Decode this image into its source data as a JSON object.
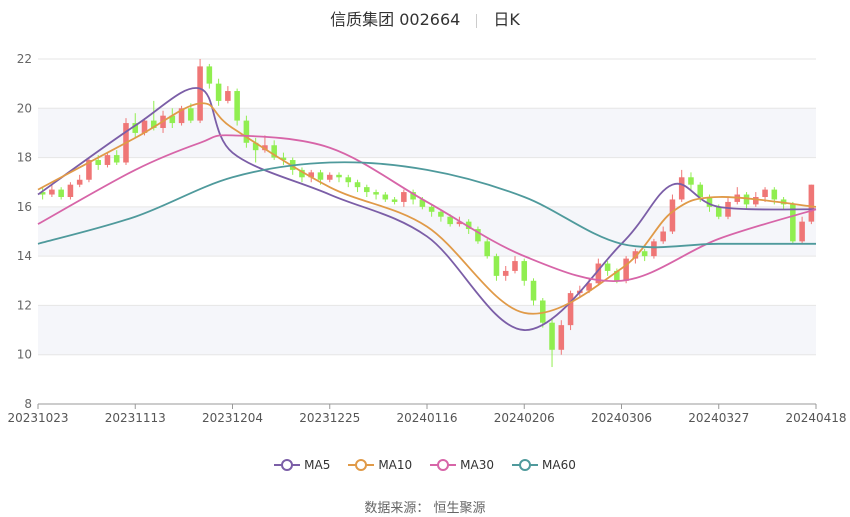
{
  "header": {
    "stock": "信质集团 002664",
    "period": "日K"
  },
  "source": "数据来源： 恒生聚源",
  "colors": {
    "up": "#ef7676",
    "down": "#90ee50",
    "ma5": "#7b5ea7",
    "ma10": "#e09a48",
    "ma30": "#d765a8",
    "ma60": "#4f9a9c",
    "band": "#f5f6fa",
    "grid": "#e6e6e6"
  },
  "chart_data": {
    "type": "candlestick",
    "title": "信质集团 002664",
    "period": "日K",
    "ylim": [
      8,
      22
    ],
    "yticks": [
      8,
      10,
      12,
      14,
      16,
      18,
      20,
      22
    ],
    "xticks": [
      "20231023",
      "20231113",
      "20231204",
      "20231225",
      "20240116",
      "20240206",
      "20240306",
      "20240327",
      "20240418"
    ],
    "legend": [
      "MA5",
      "MA10",
      "MA30",
      "MA60"
    ],
    "series": [
      {
        "name": "MA5",
        "x": [
          "20231023",
          "20231113",
          "20231127",
          "20231204",
          "20231225",
          "20240116",
          "20240206",
          "20240306",
          "20240317",
          "20240327",
          "20240418"
        ],
        "values": [
          16.5,
          19.3,
          20.8,
          18.2,
          16.5,
          14.8,
          11.0,
          14.5,
          16.9,
          16.0,
          15.9
        ]
      },
      {
        "name": "MA10",
        "x": [
          "20231023",
          "20231113",
          "20231127",
          "20231204",
          "20231225",
          "20240116",
          "20240206",
          "20240306",
          "20240317",
          "20240327",
          "20240418"
        ],
        "values": [
          16.7,
          18.8,
          20.2,
          19.2,
          16.8,
          15.2,
          11.7,
          13.5,
          15.8,
          16.4,
          16.0
        ]
      },
      {
        "name": "MA30",
        "x": [
          "20231023",
          "20231113",
          "20231127",
          "20231204",
          "20231225",
          "20240116",
          "20240206",
          "20240306",
          "20240327",
          "20240418"
        ],
        "values": [
          15.3,
          17.5,
          18.6,
          18.9,
          18.4,
          16.2,
          14.0,
          13.0,
          14.7,
          15.9
        ]
      },
      {
        "name": "MA60",
        "x": [
          "20231023",
          "20231113",
          "20231204",
          "20231225",
          "20240116",
          "20240206",
          "20240306",
          "20240327",
          "20240418"
        ],
        "values": [
          14.5,
          15.6,
          17.2,
          17.8,
          17.5,
          16.4,
          14.5,
          14.5,
          14.5
        ]
      }
    ],
    "candles": [
      [
        16.6,
        16.5,
        16.8,
        16.3
      ],
      [
        16.5,
        16.7,
        16.9,
        16.4
      ],
      [
        16.7,
        16.4,
        16.8,
        16.3
      ],
      [
        16.4,
        16.9,
        17.0,
        16.3
      ],
      [
        16.9,
        17.1,
        17.3,
        16.8
      ],
      [
        17.1,
        17.9,
        18.0,
        17.0
      ],
      [
        17.9,
        17.7,
        18.1,
        17.5
      ],
      [
        17.7,
        18.1,
        18.2,
        17.6
      ],
      [
        18.1,
        17.8,
        18.3,
        17.7
      ],
      [
        17.8,
        19.4,
        19.6,
        17.7
      ],
      [
        19.4,
        19.0,
        19.8,
        18.8
      ],
      [
        19.0,
        19.5,
        19.6,
        18.9
      ],
      [
        19.5,
        19.2,
        20.3,
        19.1
      ],
      [
        19.2,
        19.7,
        19.9,
        19.0
      ],
      [
        19.7,
        19.4,
        20.0,
        19.2
      ],
      [
        19.4,
        20.0,
        20.1,
        19.3
      ],
      [
        20.0,
        19.5,
        20.2,
        19.4
      ],
      [
        19.5,
        21.7,
        22.0,
        19.4
      ],
      [
        21.7,
        21.0,
        21.8,
        20.8
      ],
      [
        21.0,
        20.3,
        21.2,
        20.1
      ],
      [
        20.3,
        20.7,
        20.9,
        20.2
      ],
      [
        20.7,
        19.5,
        20.8,
        19.3
      ],
      [
        19.5,
        18.6,
        19.7,
        18.4
      ],
      [
        18.6,
        18.3,
        18.8,
        17.8
      ],
      [
        18.3,
        18.5,
        18.9,
        18.2
      ],
      [
        18.5,
        18.0,
        18.7,
        17.9
      ],
      [
        18.0,
        17.9,
        18.2,
        17.7
      ],
      [
        17.9,
        17.5,
        18.0,
        17.3
      ],
      [
        17.5,
        17.2,
        17.6,
        17.0
      ],
      [
        17.2,
        17.4,
        17.5,
        17.0
      ],
      [
        17.4,
        17.1,
        17.5,
        16.9
      ],
      [
        17.1,
        17.3,
        17.4,
        17.0
      ],
      [
        17.3,
        17.2,
        17.4,
        17.0
      ],
      [
        17.2,
        17.0,
        17.3,
        16.8
      ],
      [
        17.0,
        16.8,
        17.1,
        16.6
      ],
      [
        16.8,
        16.6,
        16.9,
        16.4
      ],
      [
        16.6,
        16.5,
        16.7,
        16.3
      ],
      [
        16.5,
        16.3,
        16.6,
        16.2
      ],
      [
        16.3,
        16.2,
        16.4,
        16.1
      ],
      [
        16.2,
        16.6,
        16.7,
        16.0
      ],
      [
        16.6,
        16.3,
        16.7,
        16.1
      ],
      [
        16.3,
        16.0,
        16.4,
        15.9
      ],
      [
        16.0,
        15.8,
        16.1,
        15.6
      ],
      [
        15.8,
        15.6,
        15.9,
        15.4
      ],
      [
        15.6,
        15.3,
        15.7,
        15.2
      ],
      [
        15.3,
        15.4,
        15.6,
        15.2
      ],
      [
        15.4,
        15.1,
        15.5,
        14.9
      ],
      [
        15.1,
        14.6,
        15.2,
        14.5
      ],
      [
        14.6,
        14.0,
        14.7,
        13.9
      ],
      [
        14.0,
        13.2,
        14.1,
        13.0
      ],
      [
        13.2,
        13.4,
        13.6,
        13.0
      ],
      [
        13.4,
        13.8,
        14.0,
        13.3
      ],
      [
        13.8,
        13.0,
        13.9,
        12.8
      ],
      [
        13.0,
        12.2,
        13.1,
        12.0
      ],
      [
        12.2,
        11.3,
        12.3,
        11.1
      ],
      [
        11.3,
        10.2,
        11.5,
        9.5
      ],
      [
        10.2,
        11.2,
        11.4,
        10.0
      ],
      [
        11.2,
        12.5,
        12.6,
        11.0
      ],
      [
        12.5,
        12.6,
        12.8,
        12.3
      ],
      [
        12.6,
        12.9,
        13.1,
        12.5
      ],
      [
        12.9,
        13.7,
        13.9,
        12.8
      ],
      [
        13.7,
        13.4,
        13.8,
        13.2
      ],
      [
        13.4,
        13.0,
        13.5,
        12.9
      ],
      [
        13.0,
        13.9,
        14.0,
        12.9
      ],
      [
        13.9,
        14.2,
        14.3,
        13.7
      ],
      [
        14.2,
        14.0,
        14.3,
        13.8
      ],
      [
        14.0,
        14.6,
        14.7,
        13.9
      ],
      [
        14.6,
        15.0,
        15.2,
        14.5
      ],
      [
        15.0,
        16.3,
        16.5,
        14.9
      ],
      [
        16.3,
        17.2,
        17.5,
        16.2
      ],
      [
        17.2,
        16.9,
        17.4,
        16.7
      ],
      [
        16.9,
        16.4,
        17.0,
        16.2
      ],
      [
        16.4,
        16.0,
        16.5,
        15.8
      ],
      [
        16.0,
        15.6,
        16.1,
        15.5
      ],
      [
        15.6,
        16.2,
        16.4,
        15.5
      ],
      [
        16.2,
        16.5,
        16.8,
        16.1
      ],
      [
        16.5,
        16.1,
        16.6,
        15.9
      ],
      [
        16.1,
        16.4,
        16.6,
        16.0
      ],
      [
        16.4,
        16.7,
        16.8,
        16.2
      ],
      [
        16.7,
        16.3,
        16.8,
        16.1
      ],
      [
        16.3,
        16.1,
        16.4,
        15.9
      ],
      [
        16.1,
        14.6,
        16.2,
        14.5
      ],
      [
        14.6,
        15.4,
        15.6,
        14.5
      ],
      [
        15.4,
        16.9,
        16.9,
        15.3
      ]
    ]
  }
}
